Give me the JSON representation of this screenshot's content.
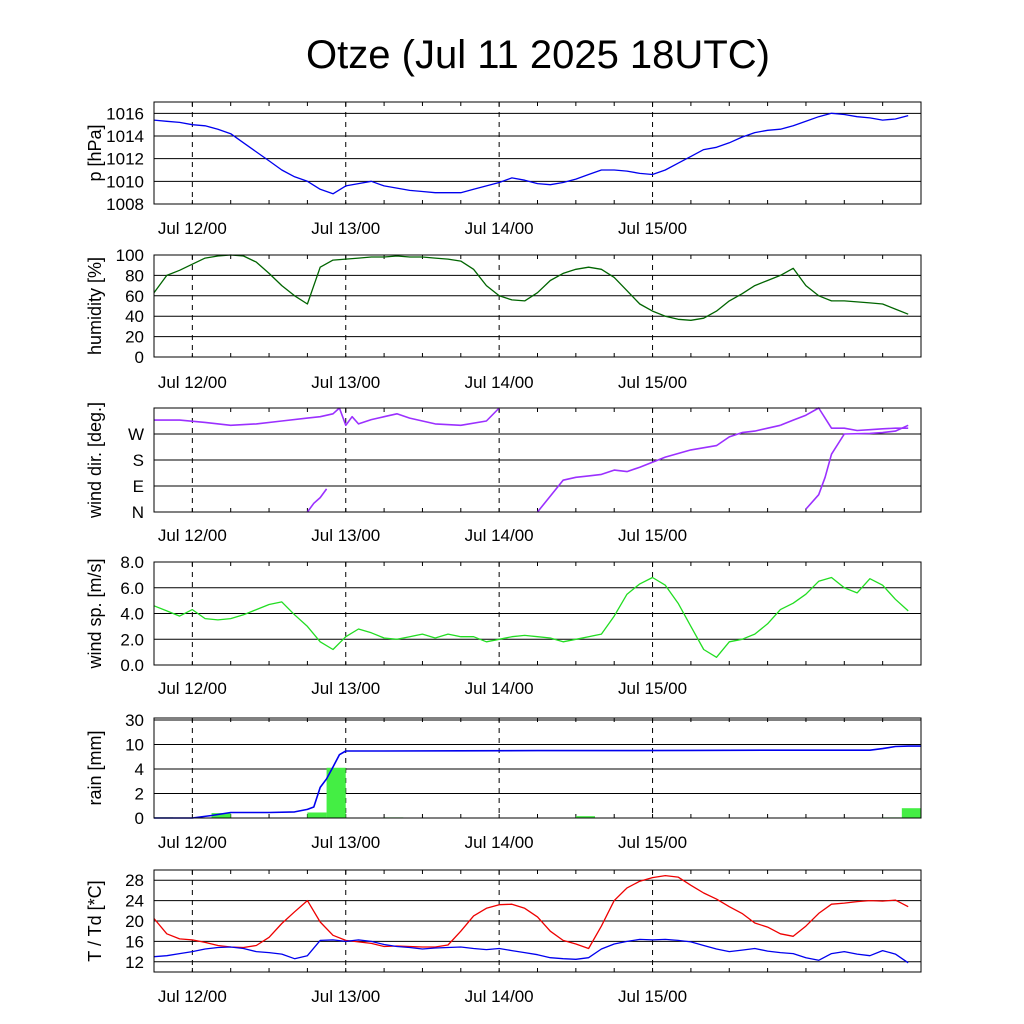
{
  "title": "Otze (Jul 11 2025 18UTC)",
  "x_ticks": [
    "Jul 12/00",
    "Jul 13/00",
    "Jul 14/00",
    "Jul 15/00"
  ],
  "chart_data": [
    {
      "type": "line",
      "ylabel": "p [hPa]",
      "ylim": [
        1008,
        1017
      ],
      "yticks": [
        1008,
        1010,
        1012,
        1014,
        1016
      ],
      "grid": true,
      "color": "#0000ee",
      "x_hours": [
        0,
        2,
        4,
        6,
        8,
        10,
        12,
        14,
        16,
        18,
        20,
        22,
        24,
        26,
        28,
        30,
        32,
        34,
        36,
        38,
        40,
        42,
        44,
        46,
        48,
        50,
        52,
        54,
        56,
        58,
        60,
        62,
        64,
        66,
        68,
        70,
        72,
        74,
        76,
        78,
        80,
        82,
        84,
        86,
        88,
        90,
        92,
        94,
        96,
        98,
        100,
        102,
        104,
        106,
        108,
        110,
        112,
        114,
        116,
        118
      ],
      "values": [
        1015.4,
        1015.3,
        1015.2,
        1015.0,
        1014.9,
        1014.6,
        1014.2,
        1013.4,
        1012.6,
        1011.8,
        1011.0,
        1010.4,
        1010.0,
        1009.3,
        1008.9,
        1009.6,
        1009.8,
        1010.0,
        1009.6,
        1009.4,
        1009.2,
        1009.1,
        1009.0,
        1009.0,
        1009.0,
        1009.3,
        1009.6,
        1009.9,
        1010.3,
        1010.1,
        1009.8,
        1009.7,
        1009.9,
        1010.2,
        1010.6,
        1011.0,
        1011.0,
        1010.9,
        1010.7,
        1010.6,
        1011.0,
        1011.6,
        1012.2,
        1012.8,
        1013.0,
        1013.4,
        1013.9,
        1014.3,
        1014.5,
        1014.6,
        1014.9,
        1015.3,
        1015.7,
        1016.0,
        1015.9,
        1015.7,
        1015.6,
        1015.4,
        1015.5,
        1015.8
      ]
    },
    {
      "type": "line",
      "ylabel": "humidity [%]",
      "ylim": [
        0,
        100
      ],
      "yticks": [
        0,
        20,
        40,
        60,
        80,
        100
      ],
      "grid": true,
      "color": "#006400",
      "x_hours": [
        0,
        2,
        4,
        6,
        8,
        10,
        12,
        14,
        16,
        18,
        20,
        22,
        24,
        26,
        28,
        30,
        32,
        34,
        36,
        38,
        40,
        42,
        44,
        46,
        48,
        50,
        52,
        54,
        56,
        58,
        60,
        62,
        64,
        66,
        68,
        70,
        72,
        74,
        76,
        78,
        80,
        82,
        84,
        86,
        88,
        90,
        92,
        94,
        96,
        98,
        100,
        102,
        104,
        106,
        108,
        110,
        112,
        114,
        116,
        118
      ],
      "values": [
        63,
        80,
        85,
        91,
        97,
        99,
        100,
        99,
        93,
        82,
        70,
        60,
        52,
        88,
        95,
        96,
        97,
        98,
        98,
        99,
        98,
        98,
        97,
        96,
        94,
        86,
        70,
        60,
        56,
        55,
        63,
        75,
        82,
        86,
        88,
        86,
        78,
        65,
        52,
        45,
        40,
        37,
        36,
        38,
        45,
        55,
        62,
        70,
        75,
        80,
        87,
        70,
        60,
        55,
        55,
        54,
        53,
        52,
        47,
        42
      ]
    },
    {
      "type": "scatter",
      "ylabel": "wind dir. [deg.]",
      "ylim": [
        0,
        360
      ],
      "yticks": [
        0,
        90,
        180,
        270
      ],
      "ytick_labels": [
        "N",
        "E",
        "S",
        "W"
      ],
      "grid": true,
      "color": "#9b30ff",
      "segments": [
        {
          "x_hours": [
            0,
            4,
            8,
            12,
            16,
            20,
            24,
            26,
            28,
            29
          ],
          "values": [
            318,
            318,
            310,
            300,
            305,
            315,
            325,
            330,
            340,
            360
          ]
        },
        {
          "x_hours": [
            24,
            25,
            26,
            27
          ],
          "values": [
            0,
            30,
            50,
            80
          ]
        },
        {
          "x_hours": [
            29,
            30,
            31,
            32,
            34,
            36,
            38,
            40,
            44,
            48,
            52,
            54
          ],
          "values": [
            360,
            300,
            330,
            305,
            320,
            330,
            340,
            325,
            305,
            300,
            315,
            360
          ]
        },
        {
          "x_hours": [
            60,
            62,
            64,
            66,
            68,
            70,
            72,
            74,
            76,
            80,
            84,
            88,
            90,
            92,
            94,
            96,
            98
          ],
          "values": [
            0,
            55,
            110,
            120,
            125,
            130,
            145,
            140,
            155,
            190,
            215,
            230,
            260,
            275,
            280,
            290,
            300
          ]
        },
        {
          "x_hours": [
            98,
            100,
            102,
            104,
            106,
            108,
            110,
            112,
            114,
            116,
            118
          ],
          "values": [
            300,
            318,
            335,
            360,
            290,
            290,
            282,
            285,
            288,
            290,
            290
          ]
        },
        {
          "x_hours": [
            102,
            104,
            105,
            106,
            108,
            112,
            114,
            116,
            118
          ],
          "values": [
            10,
            60,
            120,
            200,
            270,
            272,
            275,
            280,
            300
          ]
        }
      ]
    },
    {
      "type": "line",
      "ylabel": "wind sp. [m/s]",
      "ylim": [
        0,
        8
      ],
      "yticks": [
        0,
        2,
        4,
        6,
        8
      ],
      "ytick_labels": [
        "0.0",
        "2.0",
        "4.0",
        "6.0",
        "8.0"
      ],
      "grid": true,
      "color": "#22dd22",
      "x_hours": [
        0,
        2,
        4,
        6,
        8,
        10,
        12,
        14,
        16,
        18,
        20,
        22,
        24,
        26,
        28,
        30,
        32,
        34,
        36,
        38,
        40,
        42,
        44,
        46,
        48,
        50,
        52,
        54,
        56,
        58,
        60,
        62,
        64,
        66,
        68,
        70,
        72,
        74,
        76,
        78,
        80,
        82,
        84,
        86,
        88,
        90,
        92,
        94,
        96,
        98,
        100,
        102,
        104,
        106,
        108,
        110,
        112,
        114,
        116,
        118
      ],
      "values": [
        4.6,
        4.2,
        3.8,
        4.3,
        3.6,
        3.5,
        3.6,
        3.9,
        4.3,
        4.7,
        4.9,
        3.9,
        3.0,
        1.8,
        1.2,
        2.2,
        2.8,
        2.5,
        2.1,
        2.0,
        2.2,
        2.4,
        2.1,
        2.4,
        2.2,
        2.2,
        1.8,
        2.0,
        2.2,
        2.3,
        2.2,
        2.1,
        1.8,
        2.0,
        2.2,
        2.4,
        3.8,
        5.5,
        6.3,
        6.8,
        6.2,
        4.8,
        3.0,
        1.2,
        0.6,
        1.8,
        2.0,
        2.4,
        3.2,
        4.3,
        4.8,
        5.5,
        6.5,
        6.8,
        6.0,
        5.6,
        6.7,
        6.2,
        5.1,
        4.2
      ]
    },
    {
      "type": "bar",
      "ylabel": "rain [mm]",
      "ylim": [
        0,
        30
      ],
      "yticks": [
        0,
        2,
        4,
        10,
        30
      ],
      "grid": true,
      "bar_color": "#44ee44",
      "line_color": "#0000ee",
      "bars": [
        {
          "x_hours": [
            0,
            3
          ],
          "value": 0.05
        },
        {
          "x_hours": [
            9,
            12
          ],
          "value": 0.4
        },
        {
          "x_hours": [
            24,
            27
          ],
          "value": 0.45
        },
        {
          "x_hours": [
            27,
            30
          ],
          "value": 4.3
        },
        {
          "x_hours": [
            36,
            39
          ],
          "value": 0.05
        },
        {
          "x_hours": [
            66,
            69
          ],
          "value": 0.15
        },
        {
          "x_hours": [
            114,
            117
          ],
          "value": 0.05
        },
        {
          "x_hours": [
            117,
            120
          ],
          "value": 0.8
        }
      ],
      "cumulative": {
        "x_hours": [
          0,
          3,
          6,
          9,
          12,
          18,
          22,
          24,
          25,
          26,
          27,
          28,
          29,
          30,
          36,
          48,
          60,
          72,
          84,
          96,
          108,
          112,
          114,
          116,
          118,
          120
        ],
        "values": [
          0,
          0,
          0,
          0.2,
          0.45,
          0.45,
          0.5,
          0.7,
          0.9,
          2.5,
          3.2,
          4.5,
          7.5,
          8.4,
          8.4,
          8.45,
          8.5,
          8.5,
          8.55,
          8.6,
          8.6,
          8.6,
          9.0,
          9.5,
          9.6,
          9.6
        ]
      }
    },
    {
      "type": "line",
      "ylabel": "T / Td [*C]",
      "ylim": [
        10,
        30
      ],
      "yticks": [
        12,
        16,
        20,
        24,
        28
      ],
      "grid": true,
      "series": [
        {
          "color": "#ee0000",
          "x_hours": [
            0,
            2,
            4,
            6,
            8,
            10,
            12,
            14,
            16,
            18,
            20,
            22,
            24,
            26,
            28,
            30,
            32,
            34,
            36,
            38,
            40,
            42,
            44,
            46,
            48,
            50,
            52,
            54,
            56,
            58,
            60,
            62,
            64,
            66,
            68,
            70,
            72,
            74,
            76,
            78,
            80,
            82,
            84,
            86,
            88,
            90,
            92,
            94,
            96,
            98,
            100,
            102,
            104,
            106,
            108,
            110,
            112,
            114,
            116,
            118
          ],
          "values": [
            20.5,
            17.5,
            16.5,
            16.3,
            15.8,
            15.2,
            14.9,
            14.8,
            15.2,
            16.8,
            19.5,
            21.8,
            24.0,
            19.8,
            17.2,
            16.2,
            15.9,
            15.6,
            15.0,
            15.1,
            15.0,
            14.9,
            14.9,
            15.3,
            18.0,
            21.0,
            22.5,
            23.2,
            23.3,
            22.5,
            20.8,
            18.0,
            16.2,
            15.5,
            14.6,
            19.0,
            24.0,
            26.5,
            27.8,
            28.5,
            28.9,
            28.6,
            27.0,
            25.5,
            24.3,
            22.8,
            21.5,
            19.6,
            18.8,
            17.5,
            17.0,
            19.0,
            21.5,
            23.3,
            23.5,
            23.8,
            24.0,
            23.9,
            24.1,
            22.8
          ]
        },
        {
          "color": "#0000ee",
          "x_hours": [
            0,
            2,
            4,
            6,
            8,
            10,
            12,
            14,
            16,
            18,
            20,
            22,
            24,
            26,
            28,
            30,
            32,
            34,
            36,
            38,
            40,
            42,
            44,
            46,
            48,
            50,
            52,
            54,
            56,
            58,
            60,
            62,
            64,
            66,
            68,
            70,
            72,
            74,
            76,
            78,
            80,
            82,
            84,
            86,
            88,
            90,
            92,
            94,
            96,
            98,
            100,
            102,
            104,
            106,
            108,
            110,
            112,
            114,
            116,
            118
          ],
          "values": [
            13.0,
            13.2,
            13.6,
            14.0,
            14.5,
            14.8,
            14.9,
            14.6,
            14.0,
            13.8,
            13.5,
            12.6,
            13.2,
            16.2,
            16.3,
            16.0,
            16.3,
            16.0,
            15.4,
            15.0,
            14.8,
            14.5,
            14.7,
            14.8,
            14.9,
            14.6,
            14.4,
            14.6,
            14.2,
            13.8,
            13.4,
            12.8,
            12.6,
            12.5,
            12.8,
            14.5,
            15.5,
            16.0,
            16.4,
            16.3,
            16.4,
            16.2,
            15.9,
            15.2,
            14.5,
            14.0,
            14.3,
            14.6,
            14.1,
            13.8,
            13.6,
            12.8,
            12.3,
            13.6,
            14.0,
            13.5,
            13.2,
            14.2,
            13.5,
            11.8
          ]
        }
      ]
    }
  ]
}
